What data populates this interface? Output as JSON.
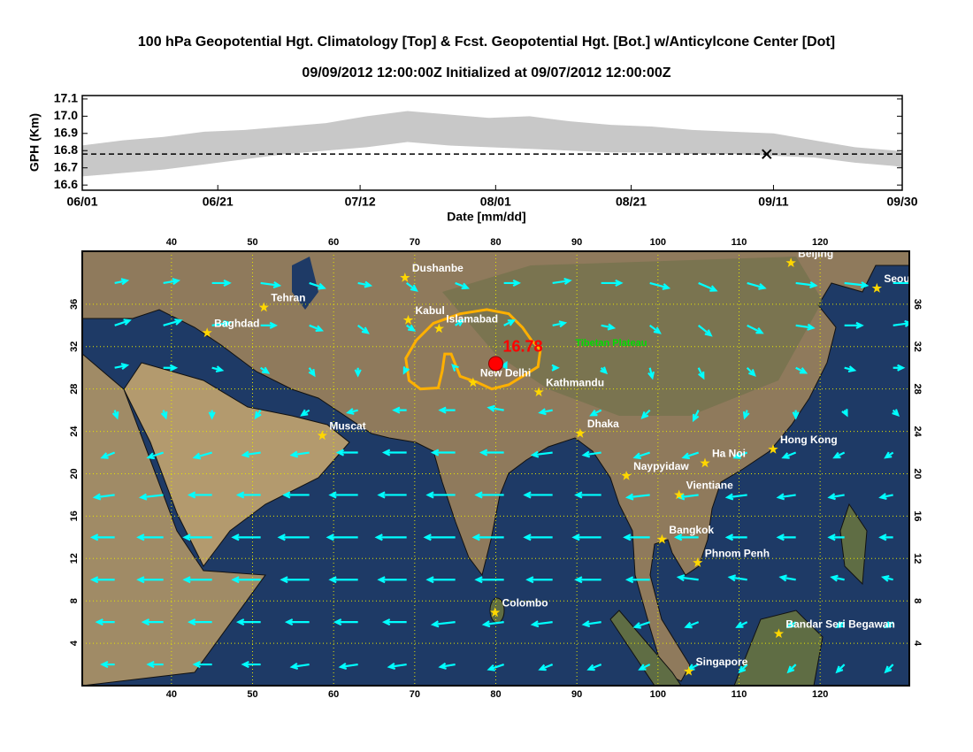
{
  "chart_data": [
    {
      "type": "band",
      "title": "100 hPa Geopotential Hgt. Climatology [Top] & Fcst. Geopotential Hgt. [Bot.] w/Anticylcone Center [Dot]",
      "subtitle": "09/09/2012 12:00:00Z Initialized at 09/07/2012 12:00:00Z",
      "y_label": "GPH (Km)",
      "x_label": "Date [mm/dd]",
      "xlim": [
        0,
        121
      ],
      "xticks": [
        {
          "value": 0,
          "label": "06/01"
        },
        {
          "value": 20,
          "label": "06/21"
        },
        {
          "value": 41,
          "label": "07/12"
        },
        {
          "value": 61,
          "label": "08/01"
        },
        {
          "value": 81,
          "label": "08/21"
        },
        {
          "value": 102,
          "label": "09/11"
        },
        {
          "value": 121,
          "label": "09/30"
        }
      ],
      "ylim": [
        16.57,
        17.12
      ],
      "yticks": [
        16.6,
        16.7,
        16.8,
        16.9,
        {
          "value": 17,
          "label": "17.0"
        },
        17.1
      ],
      "band": {
        "color": "#c8c8c8",
        "x": [
          0,
          6,
          12,
          18,
          24,
          30,
          36,
          42,
          48,
          54,
          60,
          66,
          72,
          78,
          84,
          90,
          96,
          102,
          108,
          114,
          120,
          121
        ],
        "upper": [
          16.83,
          16.86,
          16.88,
          16.91,
          16.92,
          16.94,
          16.96,
          17.0,
          17.03,
          17.01,
          16.99,
          17.0,
          16.97,
          16.95,
          16.94,
          16.92,
          16.91,
          16.9,
          16.86,
          16.82,
          16.8,
          16.79
        ],
        "lower": [
          16.65,
          16.67,
          16.69,
          16.72,
          16.75,
          16.78,
          16.8,
          16.82,
          16.85,
          16.83,
          16.82,
          16.81,
          16.8,
          16.79,
          16.79,
          16.78,
          16.78,
          16.77,
          16.76,
          16.73,
          16.71,
          16.7
        ]
      },
      "reference": 16.78,
      "marker": {
        "x": 101,
        "y": 16.78
      }
    },
    {
      "type": "vector-map",
      "xlim": [
        29,
        131
      ],
      "ylim": [
        0,
        41
      ],
      "xticks": [
        40,
        50,
        60,
        70,
        80,
        90,
        100,
        110,
        120
      ],
      "yticks": [
        4,
        8,
        12,
        16,
        20,
        24,
        28,
        32,
        36
      ],
      "grid": true,
      "vectors": {
        "color": "#00ffff",
        "lons": [
          33,
          39,
          45,
          51,
          57,
          63,
          69,
          75,
          81,
          87,
          93,
          99,
          105,
          111,
          117,
          123,
          129
        ],
        "lats": [
          38,
          34,
          30,
          26,
          22,
          18,
          14,
          10,
          6,
          2
        ],
        "u": [
          [
            10,
            12,
            14,
            15,
            12,
            10,
            8,
            10,
            12,
            14,
            16,
            15,
            14,
            14,
            16,
            18,
            18
          ],
          [
            12,
            14,
            14,
            12,
            10,
            8,
            6,
            6,
            8,
            10,
            10,
            8,
            10,
            12,
            14,
            14,
            14
          ],
          [
            10,
            10,
            8,
            6,
            4,
            0,
            -2,
            -2,
            2,
            4,
            4,
            2,
            4,
            6,
            8,
            8,
            8
          ],
          [
            2,
            2,
            0,
            -4,
            -6,
            -8,
            -10,
            -12,
            -12,
            -10,
            -8,
            -6,
            -4,
            -2,
            0,
            2,
            4
          ],
          [
            -10,
            -12,
            -14,
            -14,
            -14,
            -16,
            -18,
            -18,
            -18,
            -16,
            -14,
            -12,
            -12,
            -10,
            -10,
            -8,
            -6
          ],
          [
            -16,
            -18,
            -18,
            -18,
            -20,
            -22,
            -22,
            -22,
            -22,
            -22,
            -20,
            -18,
            -16,
            -16,
            -14,
            -12,
            -10
          ],
          [
            -18,
            -20,
            -22,
            -22,
            -24,
            -24,
            -24,
            -24,
            -24,
            -22,
            -22,
            -20,
            -18,
            -16,
            -14,
            -12,
            -10
          ],
          [
            -18,
            -20,
            -22,
            -22,
            -22,
            -22,
            -22,
            -22,
            -22,
            -20,
            -20,
            -18,
            -16,
            -14,
            -12,
            -10,
            -8
          ],
          [
            -14,
            -16,
            -18,
            -18,
            -18,
            -18,
            -18,
            -18,
            -16,
            -16,
            -14,
            -12,
            -10,
            -8,
            -6,
            -6,
            -6
          ],
          [
            -10,
            -12,
            -14,
            -14,
            -14,
            -14,
            -14,
            -12,
            -12,
            -10,
            -10,
            -8,
            -8,
            -6,
            -6,
            -6,
            -6
          ]
        ],
        "v": [
          [
            2,
            2,
            0,
            -2,
            -4,
            -2,
            -6,
            -4,
            0,
            2,
            0,
            -4,
            -6,
            -4,
            -2,
            -2,
            0
          ],
          [
            4,
            4,
            2,
            0,
            -4,
            -6,
            -4,
            4,
            4,
            2,
            -2,
            -6,
            -8,
            -6,
            -2,
            0,
            2
          ],
          [
            2,
            0,
            -2,
            -4,
            -6,
            -6,
            -4,
            2,
            4,
            0,
            -4,
            -8,
            -8,
            -6,
            -4,
            -2,
            0
          ],
          [
            -6,
            -6,
            -6,
            -6,
            -4,
            -2,
            0,
            0,
            2,
            -2,
            -4,
            -6,
            -8,
            -6,
            -6,
            -4,
            -4
          ],
          [
            -4,
            -4,
            -4,
            -2,
            -2,
            0,
            0,
            0,
            0,
            -2,
            -2,
            -4,
            -4,
            -4,
            -4,
            -4,
            -4
          ],
          [
            -2,
            -2,
            0,
            0,
            0,
            0,
            0,
            0,
            0,
            0,
            0,
            -2,
            -2,
            -2,
            -2,
            -2,
            -2
          ],
          [
            0,
            0,
            0,
            0,
            0,
            0,
            0,
            0,
            0,
            0,
            0,
            0,
            0,
            0,
            0,
            0,
            0
          ],
          [
            0,
            0,
            0,
            0,
            0,
            0,
            0,
            0,
            0,
            0,
            0,
            0,
            2,
            2,
            2,
            2,
            2
          ],
          [
            0,
            0,
            0,
            0,
            0,
            0,
            0,
            -2,
            -2,
            -2,
            -2,
            -4,
            -4,
            -4,
            -4,
            -4,
            -4
          ],
          [
            0,
            0,
            0,
            0,
            -2,
            -2,
            -2,
            -2,
            -4,
            -4,
            -4,
            -4,
            -4,
            -6,
            -6,
            -6,
            -6
          ]
        ]
      },
      "contour": {
        "color": "#ffb000",
        "lon": [
          68.9,
          70.2,
          72.3,
          75.6,
          78.9,
          81.6,
          83.3,
          84.4,
          85.5,
          85.2,
          83.3,
          81.6,
          79.5,
          77.8,
          75.6,
          74.5,
          73.7,
          73.4,
          72.9,
          70.7,
          69.3
        ],
        "lat": [
          30.9,
          32.6,
          34.2,
          35.1,
          35.5,
          35.1,
          33.8,
          32.6,
          31.7,
          30.1,
          29.2,
          28.4,
          28.0,
          28.6,
          29.2,
          31.3,
          31.3,
          29.7,
          28.1,
          28.0,
          28.8
        ]
      },
      "center": {
        "lon": 80,
        "lat": 30.4,
        "value": 16.78,
        "color": "#ff0000"
      },
      "annotation": {
        "text": "Tibetan Plateau",
        "lon": 89.8,
        "lat": 32.3,
        "color": "#00dd00"
      },
      "cities": [
        {
          "name": "Beijing",
          "lon": 116.4,
          "lat": 39.9
        },
        {
          "name": "Seoul",
          "lon": 127,
          "lat": 37.5
        },
        {
          "name": "Dushanbe",
          "lon": 68.8,
          "lat": 38.5
        },
        {
          "name": "Tehran",
          "lon": 51.4,
          "lat": 35.7
        },
        {
          "name": "Kabul",
          "lon": 69.2,
          "lat": 34.5
        },
        {
          "name": "Islamabad",
          "lon": 73,
          "lat": 33.7
        },
        {
          "name": "Baghdad",
          "lon": 44.4,
          "lat": 33.3
        },
        {
          "name": "New Delhi",
          "lon": 77.2,
          "lat": 28.6
        },
        {
          "name": "Kathmandu",
          "lon": 85.3,
          "lat": 27.7
        },
        {
          "name": "Muscat",
          "lon": 58.6,
          "lat": 23.6
        },
        {
          "name": "Dhaka",
          "lon": 90.4,
          "lat": 23.8
        },
        {
          "name": "Hong Kong",
          "lon": 114.2,
          "lat": 22.3
        },
        {
          "name": "Ha Noi",
          "lon": 105.8,
          "lat": 21
        },
        {
          "name": "Naypyidaw",
          "lon": 96.1,
          "lat": 19.8
        },
        {
          "name": "Vientiane",
          "lon": 102.6,
          "lat": 18
        },
        {
          "name": "Bangkok",
          "lon": 100.5,
          "lat": 13.8
        },
        {
          "name": "Phnom Penh",
          "lon": 104.9,
          "lat": 11.6
        },
        {
          "name": "Colombo",
          "lon": 79.9,
          "lat": 6.9
        },
        {
          "name": "Bandar Seri Begawan",
          "lon": 114.9,
          "lat": 4.9
        },
        {
          "name": "Singapore",
          "lon": 103.8,
          "lat": 1.35
        }
      ],
      "city_color": "#ffd700"
    }
  ]
}
